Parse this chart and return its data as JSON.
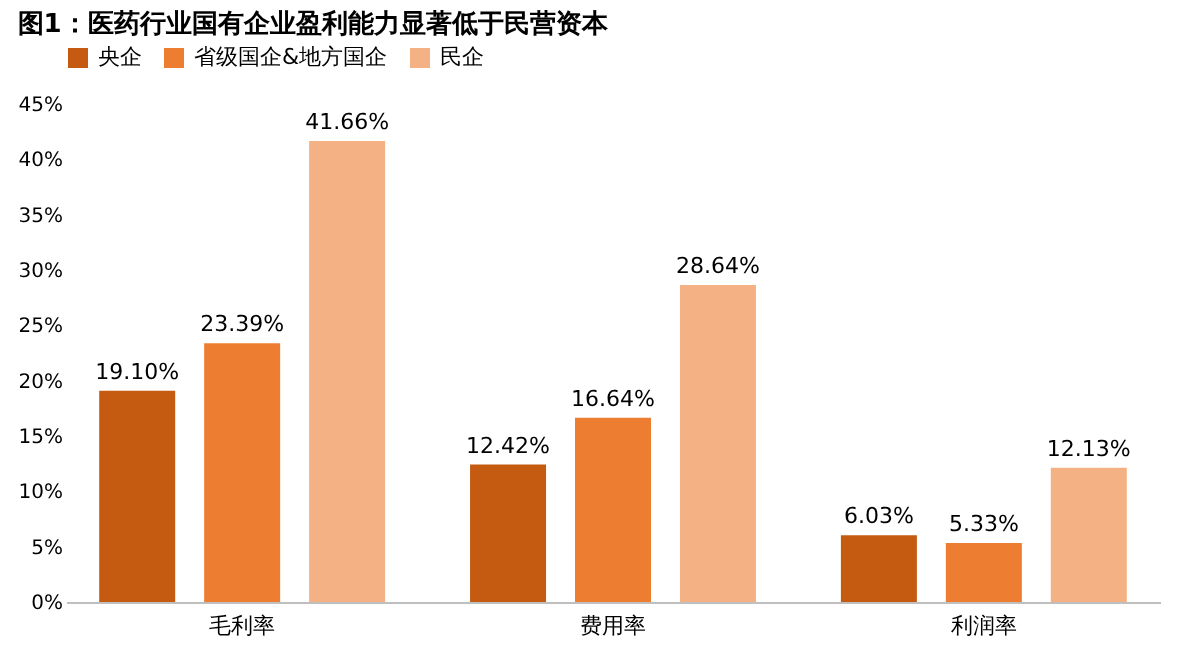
{
  "chart_data": {
    "type": "bar",
    "title": "图1：医药行业国有企业盈利能力显著低于民营资本",
    "categories": [
      "毛利率",
      "费用率",
      "利润率"
    ],
    "series": [
      {
        "name": "央企",
        "color": "#c55a11",
        "values": [
          19.1,
          12.42,
          6.03
        ],
        "value_labels": [
          "19.10%",
          "12.42%",
          "6.03%"
        ]
      },
      {
        "name": "省级国企&地方国企",
        "color": "#ed7d31",
        "values": [
          23.39,
          16.64,
          5.33
        ],
        "value_labels": [
          "23.39%",
          "16.64%",
          "5.33%"
        ]
      },
      {
        "name": "民企",
        "color": "#f4b183",
        "values": [
          41.66,
          28.64,
          12.13
        ],
        "value_labels": [
          "41.66%",
          "28.64%",
          "12.13%"
        ]
      }
    ],
    "ylim": [
      0,
      45
    ],
    "yticks": [
      {
        "value": 0,
        "label": "0%"
      },
      {
        "value": 5,
        "label": "5%"
      },
      {
        "value": 10,
        "label": "10%"
      },
      {
        "value": 15,
        "label": "15%"
      },
      {
        "value": 20,
        "label": "20%"
      },
      {
        "value": 25,
        "label": "25%"
      },
      {
        "value": 30,
        "label": "30%"
      },
      {
        "value": 35,
        "label": "35%"
      },
      {
        "value": 40,
        "label": "40%"
      },
      {
        "value": 45,
        "label": "45%"
      }
    ],
    "grid": false,
    "legend": "top"
  }
}
